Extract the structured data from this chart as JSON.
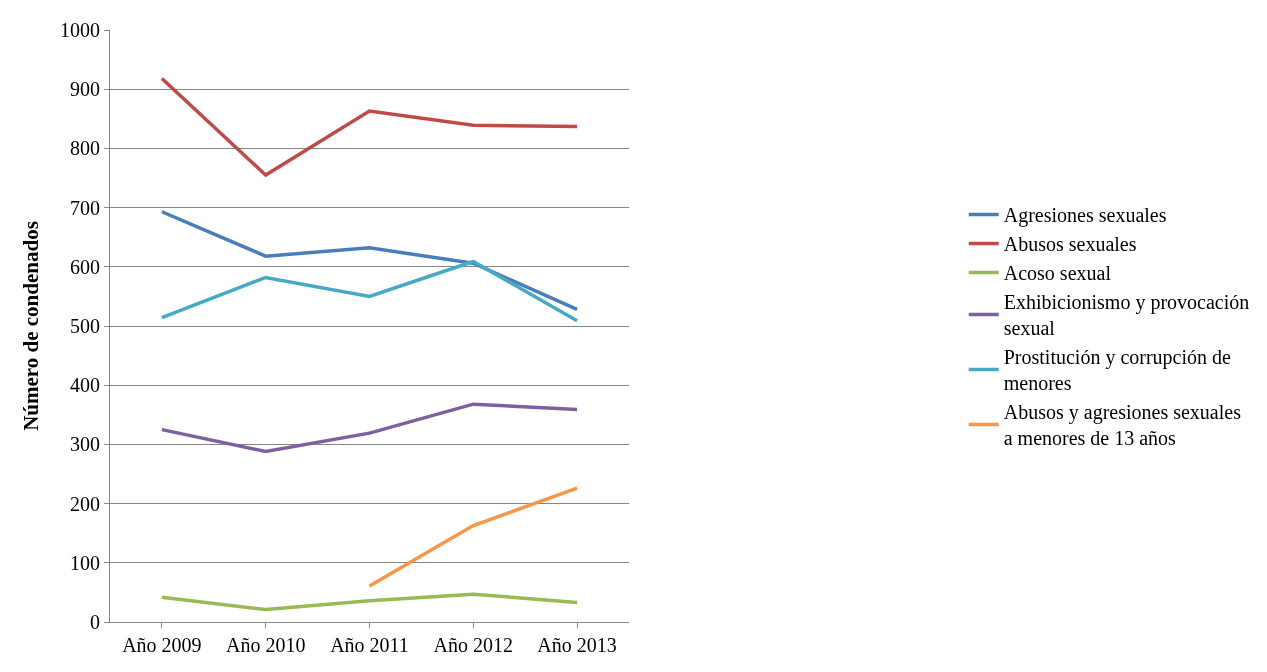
{
  "chart_data": {
    "type": "line",
    "ylabel": "Número de condenados",
    "categories": [
      "Año 2009",
      "Año 2010",
      "Año 2011",
      "Año 2012",
      "Año 2013"
    ],
    "series": [
      {
        "name": "Agresiones sexuales",
        "color": "#4a7ebb",
        "values": [
          693,
          618,
          632,
          606,
          528
        ]
      },
      {
        "name": "Abusos sexuales",
        "color": "#be4b48",
        "values": [
          918,
          755,
          863,
          839,
          837
        ]
      },
      {
        "name": "Acoso sexual",
        "color": "#98b954",
        "values": [
          42,
          21,
          36,
          47,
          33
        ]
      },
      {
        "name": "Exhibicionismo y provocación sexual",
        "color": "#7d60a0",
        "values": [
          325,
          288,
          319,
          368,
          359
        ]
      },
      {
        "name": "Prostitución y corrupción de menores",
        "color": "#46aac5",
        "values": [
          514,
          582,
          550,
          609,
          509
        ]
      },
      {
        "name": "Abusos y agresiones sexuales a menores de 13 años",
        "color": "#f79646",
        "values": [
          null,
          null,
          61,
          163,
          226
        ]
      }
    ],
    "ylim": [
      0,
      1000
    ],
    "yticks": [
      0,
      100,
      200,
      300,
      400,
      500,
      600,
      700,
      800,
      900,
      1000
    ],
    "grid": "y",
    "legend": "right",
    "marker": "none",
    "line_style": "solid"
  }
}
